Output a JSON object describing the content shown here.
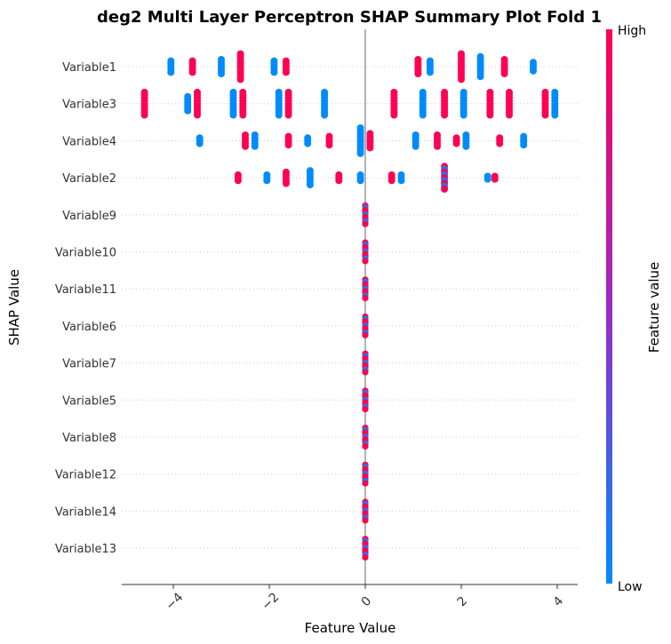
{
  "chart_data": {
    "type": "scatter",
    "title": "deg2 Multi Layer Perceptron SHAP Summary Plot Fold 1",
    "xlabel": "Feature Value",
    "ylabel": "SHAP Value",
    "xlim": [
      -5.0,
      4.5
    ],
    "xticks": [
      "−4",
      "−2",
      "0",
      "2",
      "4"
    ],
    "xtick_values": [
      -4,
      -2,
      0,
      2,
      4
    ],
    "features": [
      "Variable1",
      "Variable3",
      "Variable4",
      "Variable2",
      "Variable9",
      "Variable10",
      "Variable11",
      "Variable6",
      "Variable7",
      "Variable5",
      "Variable8",
      "Variable12",
      "Variable14",
      "Variable13"
    ],
    "colorbar": {
      "label": "Feature value",
      "high": "High",
      "low": "Low",
      "high_color": "#ff0052",
      "low_color": "#008bfb"
    },
    "clusters": [
      [
        {
          "x": -4.05,
          "n": 5,
          "level": 0
        },
        {
          "x": -3.6,
          "n": 5,
          "level": 1
        },
        {
          "x": -3.0,
          "n": 6,
          "level": 0
        },
        {
          "x": -2.6,
          "n": 10,
          "level": 1
        },
        {
          "x": -1.9,
          "n": 5,
          "level": 0
        },
        {
          "x": -1.65,
          "n": 5,
          "level": 1
        },
        {
          "x": 1.1,
          "n": 6,
          "level": 1
        },
        {
          "x": 1.35,
          "n": 5,
          "level": 0
        },
        {
          "x": 2.0,
          "n": 10,
          "level": 1
        },
        {
          "x": 2.4,
          "n": 8,
          "level": 0
        },
        {
          "x": 2.9,
          "n": 6,
          "level": 1
        },
        {
          "x": 3.5,
          "n": 4,
          "level": 0
        }
      ],
      [
        {
          "x": -4.6,
          "n": 9,
          "level": 1
        },
        {
          "x": -3.7,
          "n": 6,
          "level": 0
        },
        {
          "x": -3.5,
          "n": 9,
          "level": 1
        },
        {
          "x": -2.75,
          "n": 9,
          "level": 0
        },
        {
          "x": -2.55,
          "n": 9,
          "level": 1
        },
        {
          "x": -1.8,
          "n": 9,
          "level": 0
        },
        {
          "x": -1.6,
          "n": 9,
          "level": 1
        },
        {
          "x": -0.85,
          "n": 9,
          "level": 0
        },
        {
          "x": 0.6,
          "n": 9,
          "level": 1
        },
        {
          "x": 1.2,
          "n": 9,
          "level": 0
        },
        {
          "x": 1.65,
          "n": 9,
          "level": 1
        },
        {
          "x": 2.05,
          "n": 9,
          "level": 0
        },
        {
          "x": 2.6,
          "n": 9,
          "level": 1
        },
        {
          "x": 3.0,
          "n": 9,
          "level": 1
        },
        {
          "x": 3.75,
          "n": 9,
          "level": 1
        },
        {
          "x": 3.95,
          "n": 9,
          "level": 0
        }
      ],
      [
        {
          "x": -3.45,
          "n": 3,
          "level": 0
        },
        {
          "x": -2.5,
          "n": 5,
          "level": 1
        },
        {
          "x": -2.3,
          "n": 5,
          "level": 0
        },
        {
          "x": -1.6,
          "n": 4,
          "level": 1
        },
        {
          "x": -1.2,
          "n": 3,
          "level": 0
        },
        {
          "x": -0.75,
          "n": 4,
          "level": 1
        },
        {
          "x": -0.1,
          "n": 10,
          "level": 0
        },
        {
          "x": 0.1,
          "n": 6,
          "level": 1
        },
        {
          "x": 1.05,
          "n": 5,
          "level": 0
        },
        {
          "x": 1.5,
          "n": 5,
          "level": 1
        },
        {
          "x": 1.9,
          "n": 3,
          "level": 1
        },
        {
          "x": 2.1,
          "n": 5,
          "level": 0
        },
        {
          "x": 2.8,
          "n": 3,
          "level": 1
        },
        {
          "x": 3.3,
          "n": 4,
          "level": 0
        }
      ],
      [
        {
          "x": -2.65,
          "n": 3,
          "level": 1
        },
        {
          "x": -2.05,
          "n": 3,
          "level": 0
        },
        {
          "x": -1.65,
          "n": 5,
          "level": 1
        },
        {
          "x": -1.15,
          "n": 6,
          "level": 0
        },
        {
          "x": -0.55,
          "n": 3,
          "level": 1
        },
        {
          "x": -0.1,
          "n": 3,
          "level": 0
        },
        {
          "x": 0.55,
          "n": 3,
          "level": 1
        },
        {
          "x": 0.75,
          "n": 3,
          "level": 0
        },
        {
          "x": 1.65,
          "n": 9,
          "level": 0.7
        },
        {
          "x": 2.55,
          "n": 2,
          "level": 0
        },
        {
          "x": 2.7,
          "n": 2,
          "level": 1
        }
      ]
    ],
    "zero_rows_count": 10
  }
}
